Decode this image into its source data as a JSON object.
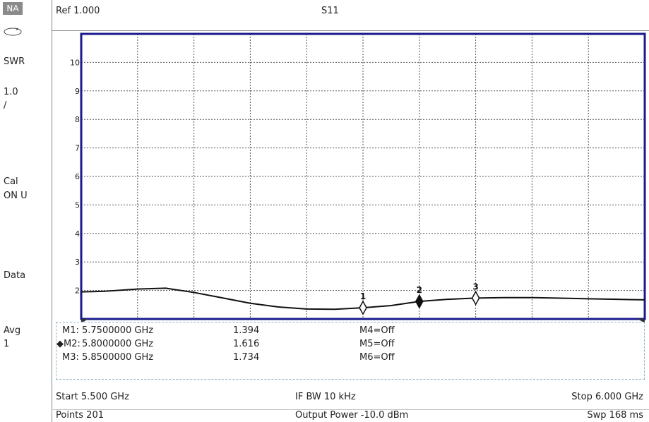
{
  "sidebar": {
    "mode": "NA",
    "icon": "sweep-loop-icon",
    "format": "SWR",
    "scale": "1.0",
    "scale_unit": "/",
    "cal_label": "Cal",
    "cal_status": "ON U",
    "data_label": "Data",
    "avg_label": "Avg",
    "avg_value": "1"
  },
  "header": {
    "ref": "Ref 1.000",
    "trace": "S11"
  },
  "chart_data": {
    "type": "line",
    "title": "S11",
    "xlim": [
      5.5,
      6.0
    ],
    "ylim": [
      1,
      11
    ],
    "yticks": [
      2,
      3,
      4,
      5,
      6,
      7,
      8,
      9,
      10
    ],
    "x_divisions": 10,
    "grid": true,
    "series": [
      {
        "x": [
          5.5,
          5.52,
          5.55,
          5.575,
          5.6,
          5.62,
          5.65,
          5.675,
          5.7,
          5.725,
          5.75,
          5.775,
          5.8,
          5.825,
          5.85,
          5.875,
          5.9,
          5.925,
          5.95,
          5.975,
          6.0
        ],
        "y": [
          1.95,
          1.97,
          2.05,
          2.08,
          1.93,
          1.78,
          1.55,
          1.42,
          1.35,
          1.34,
          1.394,
          1.47,
          1.616,
          1.69,
          1.734,
          1.75,
          1.75,
          1.73,
          1.71,
          1.69,
          1.67
        ]
      }
    ],
    "markers": [
      {
        "label": "1",
        "x": 5.75,
        "y": 1.394,
        "active": false
      },
      {
        "label": "2",
        "x": 5.8,
        "y": 1.616,
        "active": true
      },
      {
        "label": "3",
        "x": 5.85,
        "y": 1.734,
        "active": false
      }
    ]
  },
  "marker_table": {
    "rows": [
      {
        "name": "M1:",
        "freq": "5.7500000 GHz",
        "value": "1.394",
        "other": "M4=Off"
      },
      {
        "name": "◆M2:",
        "freq": "5.8000000 GHz",
        "value": "1.616",
        "other": "M5=Off"
      },
      {
        "name": "M3:",
        "freq": "5.8500000 GHz",
        "value": "1.734",
        "other": "M6=Off"
      }
    ]
  },
  "footer": {
    "start": "Start 5.500 GHz",
    "ifbw": "IF BW 10 kHz",
    "stop": "Stop 6.000 GHz",
    "points": "Points 201",
    "power": "Output Power -10.0 dBm",
    "sweep": "Swp 168 ms"
  }
}
